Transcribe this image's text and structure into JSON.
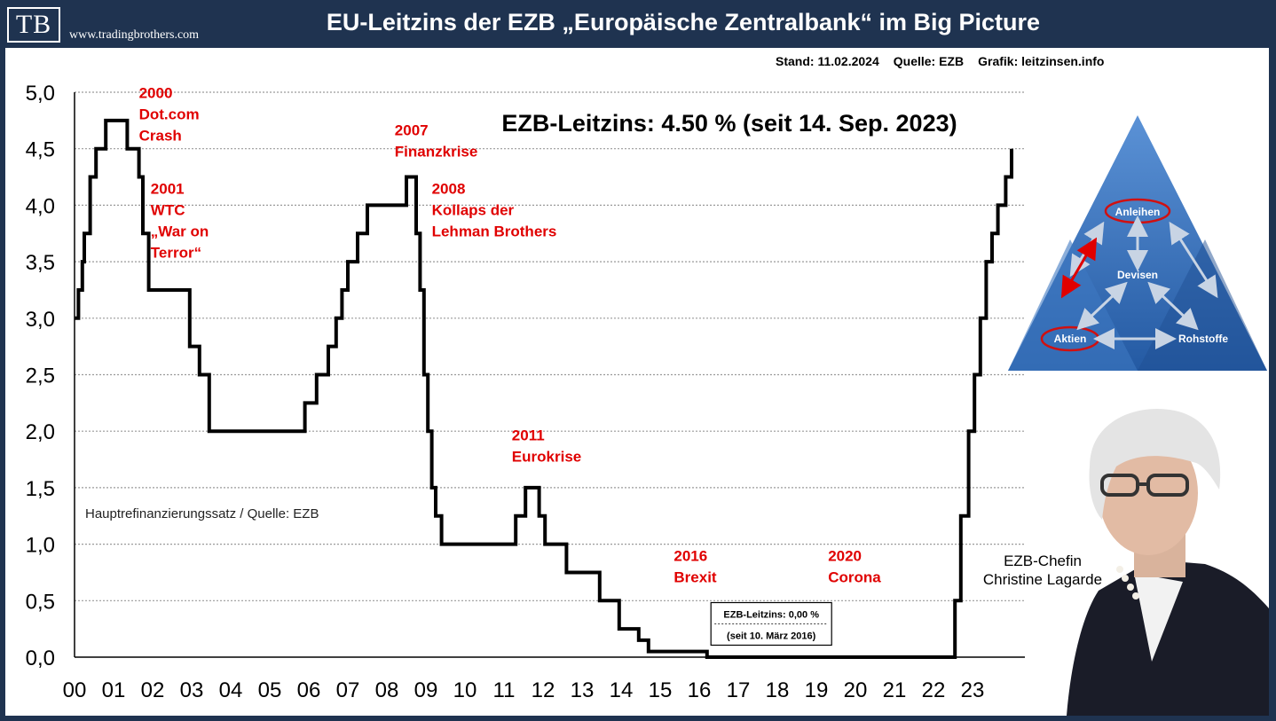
{
  "header": {
    "logo": "TB",
    "site": "www.tradingbrothers.com",
    "title": "EU-Leitzins der EZB „Europäische Zentralbank“ im Big Picture"
  },
  "meta": {
    "stand": "Stand: 11.02.2024",
    "quelle": "Quelle: EZB",
    "grafik": "Grafik: leitzinsen.info"
  },
  "chart_data": {
    "type": "line",
    "title": "EZB-Leitzins: 4.50 % (seit 14. Sep. 2023)",
    "source_label": "Hauptrefinanzierungssatz / Quelle: EZB",
    "ylim": [
      0,
      5
    ],
    "xlim": [
      0,
      24
    ],
    "y_ticks": [
      "0,0",
      "0,5",
      "1,0",
      "1,5",
      "2,0",
      "2,5",
      "3,0",
      "3,5",
      "4,0",
      "4,5",
      "5,0"
    ],
    "x_ticks": [
      "00",
      "01",
      "02",
      "03",
      "04",
      "05",
      "06",
      "07",
      "08",
      "09",
      "10",
      "11",
      "12",
      "13",
      "14",
      "15",
      "16",
      "17",
      "18",
      "19",
      "20",
      "21",
      "22",
      "23"
    ],
    "grid": "horizontal",
    "series": [
      {
        "values": [
          [
            0.0,
            3.0
          ],
          [
            0.1,
            3.25
          ],
          [
            0.2,
            3.5
          ],
          [
            0.25,
            3.75
          ],
          [
            0.4,
            4.25
          ],
          [
            0.55,
            4.5
          ],
          [
            0.8,
            4.75
          ],
          [
            1.35,
            4.5
          ],
          [
            1.65,
            4.25
          ],
          [
            1.75,
            3.75
          ],
          [
            1.9,
            3.25
          ],
          [
            2.95,
            2.75
          ],
          [
            3.2,
            2.5
          ],
          [
            3.45,
            2.0
          ],
          [
            5.9,
            2.25
          ],
          [
            6.2,
            2.5
          ],
          [
            6.5,
            2.75
          ],
          [
            6.7,
            3.0
          ],
          [
            6.85,
            3.25
          ],
          [
            7.0,
            3.5
          ],
          [
            7.25,
            3.75
          ],
          [
            7.5,
            4.0
          ],
          [
            8.5,
            4.25
          ],
          [
            8.75,
            3.75
          ],
          [
            8.85,
            3.25
          ],
          [
            8.95,
            2.5
          ],
          [
            9.05,
            2.0
          ],
          [
            9.15,
            1.5
          ],
          [
            9.25,
            1.25
          ],
          [
            9.4,
            1.0
          ],
          [
            11.3,
            1.25
          ],
          [
            11.55,
            1.5
          ],
          [
            11.9,
            1.25
          ],
          [
            12.05,
            1.0
          ],
          [
            12.6,
            0.75
          ],
          [
            13.45,
            0.5
          ],
          [
            13.95,
            0.25
          ],
          [
            14.45,
            0.15
          ],
          [
            14.7,
            0.05
          ],
          [
            16.2,
            0.0
          ],
          [
            22.55,
            0.5
          ],
          [
            22.7,
            1.25
          ],
          [
            22.9,
            2.0
          ],
          [
            23.05,
            2.5
          ],
          [
            23.2,
            3.0
          ],
          [
            23.35,
            3.5
          ],
          [
            23.5,
            3.75
          ],
          [
            23.65,
            4.0
          ],
          [
            23.85,
            4.25
          ],
          [
            24.0,
            4.5
          ]
        ]
      }
    ],
    "annotations": [
      {
        "x": 1.65,
        "y": 4.95,
        "lines": [
          "2000",
          "Dot.com",
          "Crash"
        ]
      },
      {
        "x": 1.95,
        "y": 4.1,
        "lines": [
          "2001",
          "WTC",
          "„War on",
          "Terror“"
        ]
      },
      {
        "x": 8.2,
        "y": 4.62,
        "lines": [
          "2007",
          "Finanzkrise"
        ]
      },
      {
        "x": 9.15,
        "y": 4.1,
        "lines": [
          "2008",
          "Kollaps der",
          "Lehman Brothers"
        ]
      },
      {
        "x": 11.2,
        "y": 1.92,
        "lines": [
          "2011",
          "Eurokrise"
        ]
      },
      {
        "x": 15.35,
        "y": 0.85,
        "lines": [
          "2016",
          "Brexit"
        ]
      },
      {
        "x": 19.3,
        "y": 0.85,
        "lines": [
          "2020",
          "Corona"
        ]
      }
    ],
    "callout": {
      "x": 16.3,
      "y": 0.42,
      "lines": [
        "EZB-Leitzins: 0,00 %",
        "(seit 10. März 2016)"
      ]
    }
  },
  "pyramid": {
    "top": "Anleihen",
    "center": "Devisen",
    "left": "Aktien",
    "right": "Rohstoffe"
  },
  "caption": {
    "line1": "EZB-Chefin",
    "line2": "Christine Lagarde"
  },
  "colors": {
    "frame": "#1f3350",
    "annotation": "#e00000",
    "pyramid": "#2d6ab0"
  }
}
